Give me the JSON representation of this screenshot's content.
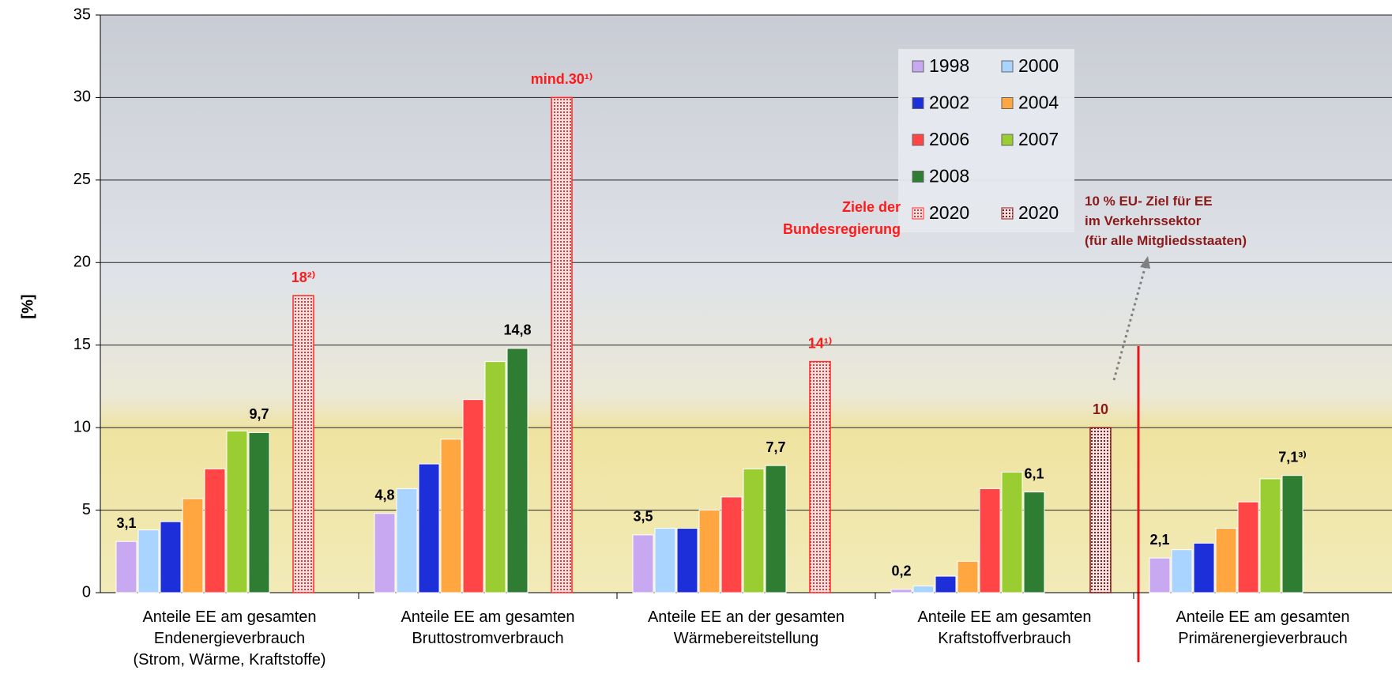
{
  "chart_data": {
    "type": "bar",
    "y_label": "[%]",
    "categories": [
      "Anteile EE am gesamten\nEndenergieverbrauch\n(Strom, Wärme, Kraftstoffe)",
      "Anteile EE am gesamten\nBruttostromverbrauch",
      "Anteile EE an der gesamten\nWärmebereitstellung",
      "Anteile EE am gesamten\nKraftstoffverbrauch",
      "Anteile EE am gesamten\nPrimärenergieverbrauch"
    ],
    "series": [
      {
        "name": "1998",
        "color": "#c8a8f0",
        "label_color": "#000000",
        "values": [
          3.1,
          4.8,
          3.5,
          0.2,
          2.1
        ],
        "value_labels": [
          "3,1",
          "4,8",
          "3,5",
          "0,2",
          "2,1"
        ]
      },
      {
        "name": "2000",
        "color": "#a8d4ff",
        "label_color": "#000000",
        "values": [
          3.8,
          6.3,
          3.9,
          0.4,
          2.6
        ],
        "value_labels": [
          null,
          null,
          null,
          null,
          null
        ]
      },
      {
        "name": "2002",
        "color": "#1c2fd8",
        "label_color": "#000000",
        "values": [
          4.3,
          7.8,
          3.9,
          1.0,
          3.0
        ],
        "value_labels": [
          null,
          null,
          null,
          null,
          null
        ]
      },
      {
        "name": "2004",
        "color": "#ffa640",
        "label_color": "#000000",
        "values": [
          5.7,
          9.3,
          5.0,
          1.9,
          3.9
        ],
        "value_labels": [
          null,
          null,
          null,
          null,
          null
        ]
      },
      {
        "name": "2006",
        "color": "#ff4545",
        "label_color": "#000000",
        "values": [
          7.5,
          11.7,
          5.8,
          6.3,
          5.5
        ],
        "value_labels": [
          null,
          null,
          null,
          null,
          null
        ]
      },
      {
        "name": "2007",
        "color": "#9acd32",
        "label_color": "#000000",
        "values": [
          9.8,
          14.0,
          7.5,
          7.3,
          6.9
        ],
        "value_labels": [
          null,
          null,
          null,
          null,
          null
        ]
      },
      {
        "name": "2008",
        "color": "#2e7d32",
        "label_color": "#000000",
        "values": [
          9.7,
          14.8,
          7.7,
          6.1,
          7.1
        ],
        "value_labels": [
          "9,7",
          "14,8",
          "7,7",
          "6,1",
          "7,1³⁾"
        ]
      },
      {
        "name": "2020",
        "color": "#ff2a2a",
        "pattern": "dotted",
        "label_color": "#ff1a1a",
        "values": [
          18,
          30,
          14,
          null,
          null
        ],
        "value_labels": [
          "18²⁾",
          "mind.30¹⁾",
          "14¹⁾",
          null,
          null
        ]
      },
      {
        "name": "2020",
        "color": "#8b1a1a",
        "pattern": "dotted",
        "label_color": "#8b1a1a",
        "values": [
          null,
          null,
          null,
          10,
          null
        ],
        "value_labels": [
          null,
          null,
          null,
          "10",
          null
        ]
      }
    ],
    "annotations": [
      "Ziele der\nBundesregierung",
      "10 % EU- Ziel für EE\nim Verkehrssektor\n(für alle Mitgliedsstaaten)"
    ],
    "ylim": [
      0,
      35
    ],
    "yticks": [
      0,
      5,
      10,
      15,
      20,
      25,
      30,
      35
    ],
    "grid": true
  }
}
